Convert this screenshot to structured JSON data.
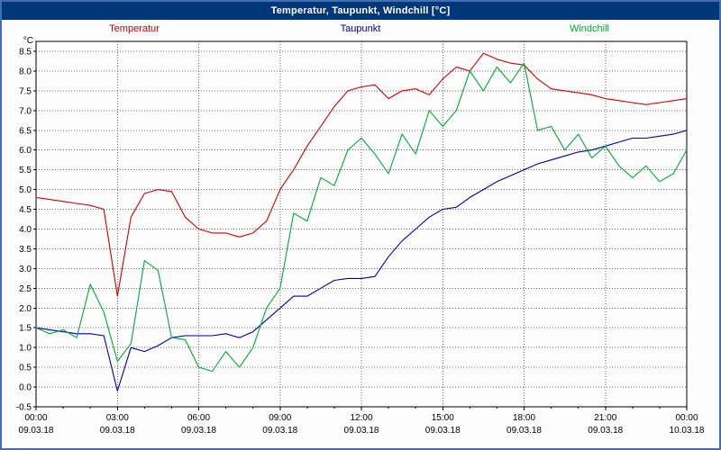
{
  "chart_data": {
    "type": "line",
    "title": "Temperatur, Taupunkt, Windchill [°C]",
    "ylabel": "°C",
    "xlabel": "",
    "ylim": [
      -0.5,
      8.5
    ],
    "ytick_step": 0.5,
    "grid": true,
    "legend_position": "top",
    "x_start": 0,
    "x_end": 24,
    "x_interval_hours": 0.5,
    "y_ticks": [
      8.5,
      8.0,
      7.5,
      7.0,
      6.5,
      6.0,
      5.5,
      5.0,
      4.5,
      4.0,
      3.5,
      3.0,
      2.5,
      2.0,
      1.5,
      1.0,
      0.5,
      0.0,
      -0.5
    ],
    "x_ticks": [
      {
        "hour": 0,
        "time": "00:00",
        "date": "09.03.18"
      },
      {
        "hour": 3,
        "time": "03:00",
        "date": "09.03.18"
      },
      {
        "hour": 6,
        "time": "06:00",
        "date": "09.03.18"
      },
      {
        "hour": 9,
        "time": "09:00",
        "date": "09.03.18"
      },
      {
        "hour": 12,
        "time": "12:00",
        "date": "09.03.18"
      },
      {
        "hour": 15,
        "time": "15:00",
        "date": "09.03.18"
      },
      {
        "hour": 18,
        "time": "18:00",
        "date": "09.03.18"
      },
      {
        "hour": 21,
        "time": "21:00",
        "date": "09.03.18"
      },
      {
        "hour": 24,
        "time": "00:00",
        "date": "10.03.18"
      }
    ],
    "series": [
      {
        "name": "Temperatur",
        "color": "#cc0000",
        "values": [
          4.8,
          4.75,
          4.7,
          4.65,
          4.6,
          4.5,
          2.3,
          4.3,
          4.9,
          5.0,
          4.95,
          4.3,
          4.0,
          3.9,
          3.9,
          3.8,
          3.9,
          4.2,
          5.0,
          5.5,
          6.1,
          6.6,
          7.1,
          7.5,
          7.6,
          7.65,
          7.3,
          7.5,
          7.55,
          7.4,
          7.8,
          8.1,
          8.0,
          8.45,
          8.3,
          8.2,
          8.15,
          7.8,
          7.55,
          7.5,
          7.45,
          7.4,
          7.3,
          7.25,
          7.2,
          7.15,
          7.2,
          7.25,
          7.3
        ]
      },
      {
        "name": "Taupunkt",
        "color": "#0000a0",
        "values": [
          1.5,
          1.45,
          1.4,
          1.35,
          1.35,
          1.3,
          -0.1,
          1.0,
          0.9,
          1.05,
          1.25,
          1.3,
          1.3,
          1.3,
          1.35,
          1.25,
          1.4,
          1.7,
          2.0,
          2.3,
          2.3,
          2.5,
          2.7,
          2.75,
          2.75,
          2.8,
          3.3,
          3.7,
          4.0,
          4.3,
          4.5,
          4.55,
          4.8,
          5.0,
          5.2,
          5.35,
          5.5,
          5.65,
          5.75,
          5.85,
          5.95,
          6.0,
          6.1,
          6.2,
          6.3,
          6.3,
          6.35,
          6.4,
          6.5
        ]
      },
      {
        "name": "Windchill",
        "color": "#00aa33",
        "values": [
          1.5,
          1.35,
          1.45,
          1.25,
          2.6,
          1.9,
          0.65,
          1.1,
          3.2,
          2.95,
          1.25,
          1.2,
          0.5,
          0.4,
          0.9,
          0.5,
          1.0,
          2.0,
          2.5,
          4.4,
          4.2,
          5.3,
          5.1,
          6.0,
          6.3,
          5.9,
          5.4,
          6.4,
          5.9,
          7.0,
          6.6,
          7.0,
          8.0,
          7.5,
          8.1,
          7.7,
          8.2,
          6.5,
          6.6,
          6.0,
          6.4,
          5.8,
          6.1,
          5.6,
          5.3,
          5.6,
          5.2,
          5.4,
          6.0
        ]
      }
    ]
  }
}
